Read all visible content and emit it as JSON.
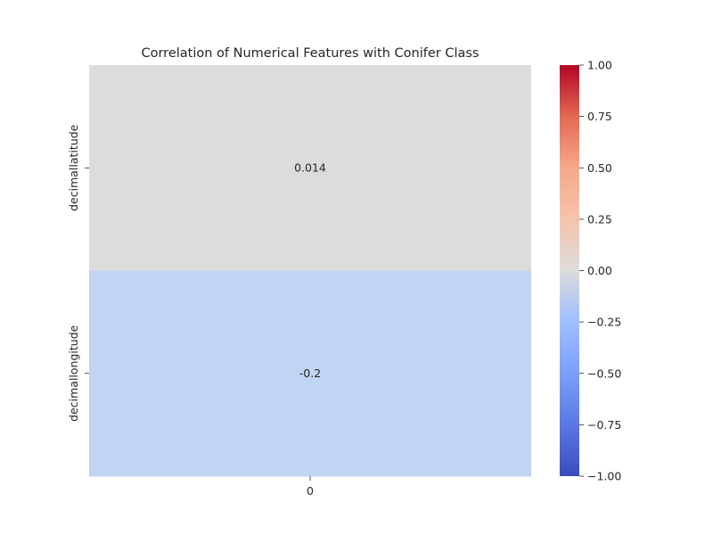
{
  "chart_data": {
    "type": "heatmap",
    "title": "Correlation of Numerical Features with Conifer Class",
    "rows": [
      "decimallatitude",
      "decimallongitude"
    ],
    "columns": [
      "0"
    ],
    "values": [
      [
        0.014
      ],
      [
        -0.2
      ]
    ],
    "annotations": [
      "0.014",
      "-0.2"
    ],
    "vmin": -1.0,
    "vmax": 1.0,
    "colormap": "coolwarm",
    "colorbar_ticks": [
      "1.00",
      "0.75",
      "0.50",
      "0.25",
      "0.00",
      "−0.25",
      "−0.50",
      "−0.75",
      "−1.00"
    ],
    "colorbar_tick_values": [
      1.0,
      0.75,
      0.5,
      0.25,
      0.0,
      -0.25,
      -0.5,
      -0.75,
      -1.0
    ],
    "colors": {
      "cell_0": "#dddcdc",
      "cell_1": "#c0d4f4"
    }
  }
}
